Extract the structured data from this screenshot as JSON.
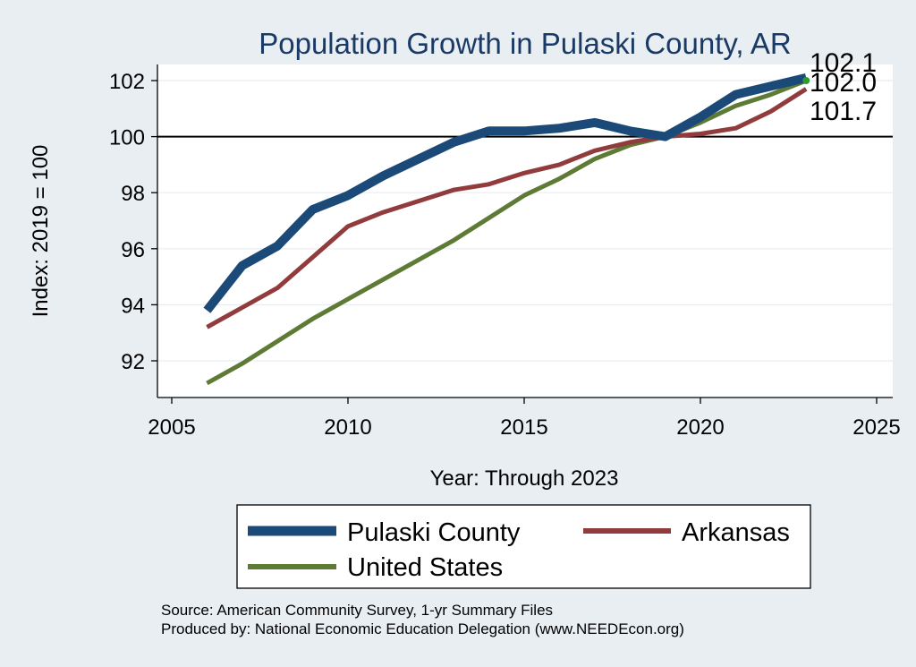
{
  "chart_data": {
    "type": "line",
    "title": "Population Growth in Pulaski County, AR",
    "xlabel": "Year: Through 2023",
    "ylabel": "Index: 2019 = 100",
    "xlim": [
      2005,
      2025
    ],
    "ylim": [
      90.5,
      102.5
    ],
    "xticks": [
      2005,
      2010,
      2015,
      2020,
      2025
    ],
    "yticks": [
      92,
      94,
      96,
      98,
      100,
      102
    ],
    "reference_line": 100,
    "x": [
      2006,
      2007,
      2008,
      2009,
      2010,
      2011,
      2012,
      2013,
      2014,
      2015,
      2016,
      2017,
      2018,
      2019,
      2020,
      2021,
      2022,
      2023
    ],
    "series": [
      {
        "name": "Pulaski  County",
        "color": "#1b4a78",
        "values": [
          93.8,
          95.4,
          96.1,
          97.4,
          97.9,
          98.6,
          99.2,
          99.8,
          100.2,
          100.2,
          100.3,
          100.5,
          100.2,
          100.0,
          100.7,
          101.5,
          101.8,
          102.1
        ],
        "end_label": "102.1"
      },
      {
        "name": "Arkansas",
        "color": "#923b3d",
        "values": [
          93.2,
          93.9,
          94.6,
          95.7,
          96.8,
          97.3,
          97.7,
          98.1,
          98.3,
          98.7,
          99.0,
          99.5,
          99.8,
          100.0,
          100.1,
          100.3,
          100.9,
          101.7
        ],
        "end_label": "101.7"
      },
      {
        "name": "United States",
        "color": "#5d7b35",
        "values": [
          91.2,
          91.9,
          92.7,
          93.5,
          94.2,
          94.9,
          95.6,
          96.3,
          97.1,
          97.9,
          98.5,
          99.2,
          99.7,
          100.0,
          100.5,
          101.1,
          101.5,
          102.0
        ],
        "end_label": "102.0"
      }
    ],
    "legend": {
      "position": "bottom",
      "entries": [
        "Pulaski  County",
        "Arkansas",
        "United States"
      ]
    },
    "notes": [
      "Source: American Community Survey, 1-yr Summary Files",
      "Produced by: National Economic Education Delegation (www.NEEDEcon.org)"
    ]
  }
}
